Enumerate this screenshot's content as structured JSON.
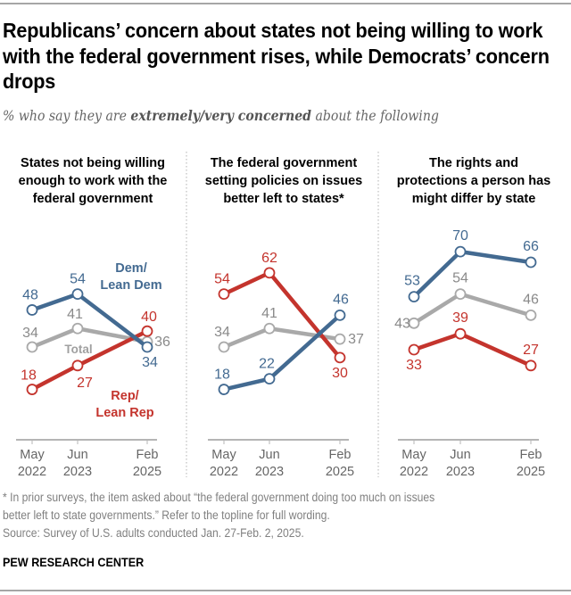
{
  "title": "Republicans’ concern about states not being willing to work with the federal government rises, while Democrats’ concern drops",
  "subtitle_pre": "% who say they are ",
  "subtitle_bold": "extremely/very concerned",
  "subtitle_post": " about the following",
  "footnote_line1": "* In prior surveys, the item asked about “the federal government doing too much on issues",
  "footnote_line2": "better left to state governments.” Refer to the topline for full wording.",
  "source": "Source: Survey of U.S. adults conducted Jan. 27-Feb. 2, 2025.",
  "brand": "PEW RESEARCH CENTER",
  "colors": {
    "dem": "#436a91",
    "rep": "#c4342d",
    "total": "#a9a9a9"
  },
  "chart_data": [
    {
      "type": "line",
      "title": "States not being willing enough to work with the federal government",
      "title_lines": [
        "States not being willing",
        "enough to work with the",
        "federal government"
      ],
      "categories": [
        "May 2022",
        "Jun 2023",
        "Feb 2025"
      ],
      "tick_lines": [
        [
          "May",
          "2022"
        ],
        [
          "Jun",
          "2023"
        ],
        [
          "Feb",
          "2025"
        ]
      ],
      "series": [
        {
          "name": "Dem/Lean Dem",
          "key": "dem",
          "values": [
            48,
            54,
            34
          ]
        },
        {
          "name": "Total",
          "key": "total",
          "values": [
            34,
            41,
            36
          ]
        },
        {
          "name": "Rep/Lean Rep",
          "key": "rep",
          "values": [
            18,
            27,
            40
          ]
        }
      ],
      "series_labels": {
        "dem": [
          "Dem/",
          "Lean Dem"
        ],
        "total": [
          "Total"
        ],
        "rep": [
          "Rep/",
          "Lean Rep"
        ]
      },
      "ylim": [
        0,
        100
      ],
      "grid": false
    },
    {
      "type": "line",
      "title": "The federal government setting policies on issues better left to states*",
      "title_lines": [
        "The federal government",
        "setting policies on issues",
        "better left to states*"
      ],
      "categories": [
        "May 2022",
        "Jun 2023",
        "Feb 2025"
      ],
      "tick_lines": [
        [
          "May",
          "2022"
        ],
        [
          "Jun",
          "2023"
        ],
        [
          "Feb",
          "2025"
        ]
      ],
      "series": [
        {
          "name": "Dem/Lean Dem",
          "key": "dem",
          "values": [
            18,
            22,
            46
          ]
        },
        {
          "name": "Total",
          "key": "total",
          "values": [
            34,
            41,
            37
          ]
        },
        {
          "name": "Rep/Lean Rep",
          "key": "rep",
          "values": [
            54,
            62,
            30
          ]
        }
      ],
      "ylim": [
        0,
        100
      ],
      "grid": false
    },
    {
      "type": "line",
      "title": "The rights and protections a person has might differ by state",
      "title_lines": [
        "The rights and",
        "protections a person has",
        "might differ by state"
      ],
      "categories": [
        "May 2022",
        "Jun 2023",
        "Feb 2025"
      ],
      "tick_lines": [
        [
          "May",
          "2022"
        ],
        [
          "Jun",
          "2023"
        ],
        [
          "Feb",
          "2025"
        ]
      ],
      "series": [
        {
          "name": "Dem/Lean Dem",
          "key": "dem",
          "values": [
            53,
            70,
            66
          ]
        },
        {
          "name": "Total",
          "key": "total",
          "values": [
            43,
            54,
            46
          ]
        },
        {
          "name": "Rep/Lean Rep",
          "key": "rep",
          "values": [
            33,
            39,
            27
          ]
        }
      ],
      "ylim": [
        0,
        100
      ],
      "grid": false
    }
  ]
}
